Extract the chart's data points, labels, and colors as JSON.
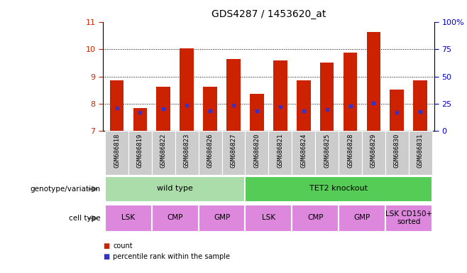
{
  "title": "GDS4287 / 1453620_at",
  "samples": [
    "GSM686818",
    "GSM686819",
    "GSM686822",
    "GSM686823",
    "GSM686826",
    "GSM686827",
    "GSM686820",
    "GSM686821",
    "GSM686824",
    "GSM686825",
    "GSM686828",
    "GSM686829",
    "GSM686830",
    "GSM686831"
  ],
  "bar_values": [
    8.85,
    7.83,
    8.62,
    10.02,
    8.62,
    9.65,
    8.35,
    9.58,
    8.85,
    9.52,
    9.87,
    10.63,
    8.52,
    8.85
  ],
  "blue_marks": [
    7.83,
    7.68,
    7.82,
    7.95,
    7.75,
    7.95,
    7.73,
    7.9,
    7.75,
    7.78,
    7.92,
    8.02,
    7.68,
    7.72
  ],
  "bar_bottom": 7.0,
  "ylim_left": [
    7,
    11
  ],
  "ylim_right": [
    0,
    100
  ],
  "yticks_left": [
    7,
    8,
    9,
    10,
    11
  ],
  "yticks_right": [
    0,
    25,
    50,
    75,
    100
  ],
  "ytick_labels_right": [
    "0",
    "25",
    "50",
    "75",
    "100%"
  ],
  "bar_color": "#cc2200",
  "blue_color": "#3333cc",
  "bg_color": "#ffffff",
  "left_tick_color": "#cc2200",
  "right_tick_color": "#0000cc",
  "genotype_groups": [
    {
      "label": "wild type",
      "start": 0,
      "end": 6,
      "color": "#aaddaa"
    },
    {
      "label": "TET2 knockout",
      "start": 6,
      "end": 14,
      "color": "#55cc55"
    }
  ],
  "cell_type_groups": [
    {
      "label": "LSK",
      "start": 0,
      "end": 2
    },
    {
      "label": "CMP",
      "start": 2,
      "end": 4
    },
    {
      "label": "GMP",
      "start": 4,
      "end": 6
    },
    {
      "label": "LSK",
      "start": 6,
      "end": 8
    },
    {
      "label": "CMP",
      "start": 8,
      "end": 10
    },
    {
      "label": "GMP",
      "start": 10,
      "end": 12
    },
    {
      "label": "LSK CD150+\nsorted",
      "start": 12,
      "end": 14
    }
  ],
  "cell_type_color": "#dd88dd",
  "sample_bg_color": "#cccccc",
  "genotype_label": "genotype/variation",
  "celltype_label": "cell type",
  "legend_count_color": "#cc2200",
  "legend_pct_color": "#3333cc"
}
